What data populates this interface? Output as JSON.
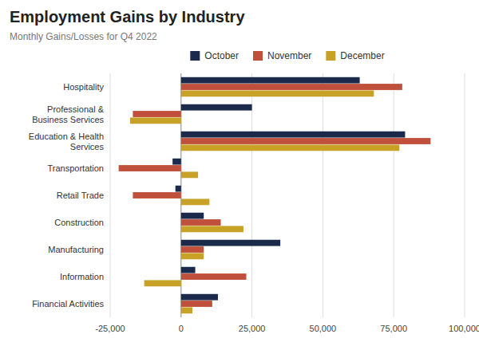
{
  "chart_data": {
    "type": "bar",
    "orientation": "horizontal",
    "title": "Employment Gains by Industry",
    "subtitle": "Monthly Gains/Losses for Q4 2022",
    "categories": [
      "Hospitality",
      "Professional &\nBusiness Services",
      "Education & Health\nServices",
      "Transportation",
      "Retail Trade",
      "Construction",
      "Manufacturing",
      "Information",
      "Financial Activities"
    ],
    "series": [
      {
        "name": "October",
        "color": "#1b2a4a",
        "values": [
          63000,
          25000,
          79000,
          -3000,
          -2000,
          8000,
          35000,
          5000,
          13000
        ]
      },
      {
        "name": "November",
        "color": "#c0503b",
        "values": [
          78000,
          -17000,
          88000,
          -22000,
          -17000,
          14000,
          8000,
          23000,
          11000
        ]
      },
      {
        "name": "December",
        "color": "#c8a227",
        "values": [
          68000,
          -18000,
          77000,
          6000,
          10000,
          22000,
          8000,
          -13000,
          4000
        ]
      }
    ],
    "xlim": [
      -25000,
      100000
    ],
    "xticks": [
      {
        "value": -25000,
        "label": "-25,000"
      },
      0,
      {
        "value": 25000,
        "label": "25,000"
      },
      {
        "value": 50000,
        "label": "50,000"
      },
      {
        "value": 75000,
        "label": "75,000"
      },
      {
        "value": 100000,
        "label": "100,000"
      }
    ],
    "grid": true,
    "legend": "top"
  }
}
